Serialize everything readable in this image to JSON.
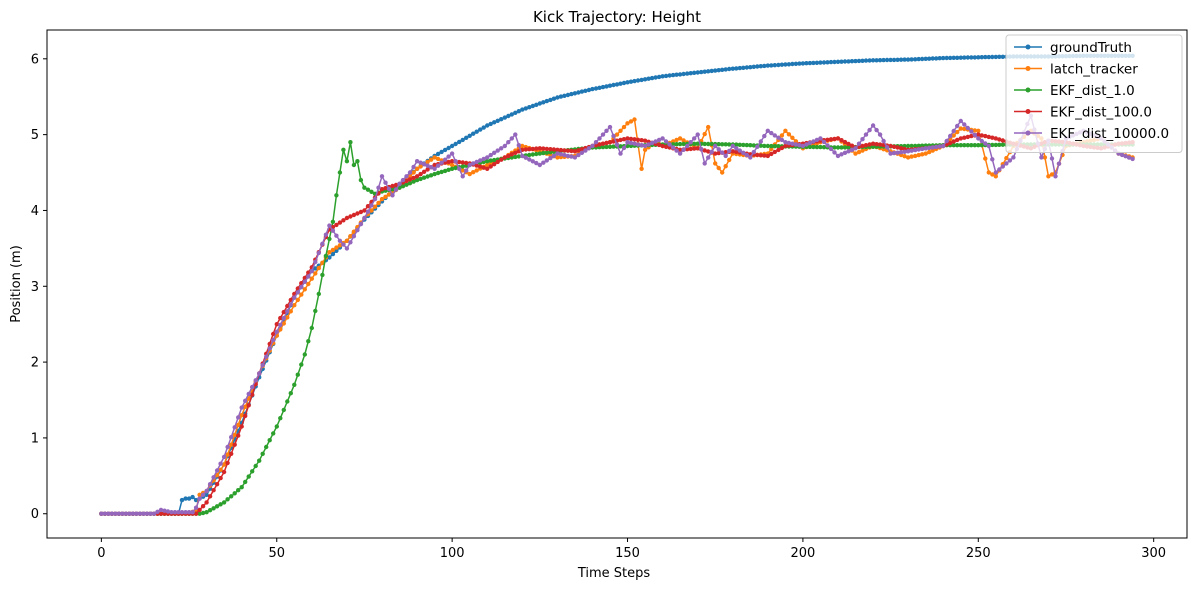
{
  "chart_data": {
    "type": "line",
    "title": "Kick Trajectory: Height",
    "xlabel": "Time Steps",
    "ylabel": "Position (m)",
    "xlim": [
      -15.5,
      309.5
    ],
    "ylim": [
      -0.32,
      6.38
    ],
    "xticks": [
      0,
      50,
      100,
      150,
      200,
      250,
      300
    ],
    "yticks": [
      0,
      1,
      2,
      3,
      4,
      5,
      6
    ],
    "grid": false,
    "legend_position": "upper right",
    "series": [
      {
        "name": "groundTruth",
        "color": "#1f77b4",
        "x": [
          0,
          10,
          20,
          22,
          23,
          24,
          25,
          26,
          27,
          28,
          30,
          35,
          40,
          45,
          50,
          55,
          60,
          65,
          70,
          75,
          80,
          85,
          90,
          95,
          100,
          110,
          120,
          130,
          140,
          150,
          160,
          170,
          180,
          190,
          200,
          210,
          220,
          230,
          240,
          250,
          260,
          270,
          280,
          290,
          294
        ],
        "y": [
          0,
          0,
          0.0,
          0.0,
          0.18,
          0.2,
          0.2,
          0.22,
          0.18,
          0.2,
          0.25,
          0.65,
          1.2,
          1.8,
          2.35,
          2.85,
          3.2,
          3.38,
          3.6,
          3.88,
          4.12,
          4.35,
          4.55,
          4.72,
          4.85,
          5.12,
          5.33,
          5.49,
          5.6,
          5.69,
          5.77,
          5.82,
          5.87,
          5.91,
          5.94,
          5.96,
          5.98,
          5.99,
          6.01,
          6.02,
          6.03,
          6.03,
          6.04,
          6.04,
          6.04
        ]
      },
      {
        "name": "latch_tracker",
        "color": "#ff7f0e",
        "x": [
          0,
          15,
          20,
          25,
          27,
          28,
          30,
          35,
          40,
          45,
          50,
          55,
          60,
          65,
          70,
          75,
          78,
          80,
          85,
          90,
          95,
          100,
          105,
          110,
          115,
          120,
          125,
          130,
          135,
          140,
          145,
          150,
          152,
          154,
          155,
          158,
          160,
          165,
          170,
          173,
          175,
          177,
          180,
          185,
          190,
          195,
          200,
          205,
          210,
          215,
          220,
          225,
          230,
          235,
          240,
          245,
          250,
          253,
          255,
          260,
          265,
          268,
          270,
          272,
          275,
          280,
          285,
          290,
          294
        ],
        "y": [
          0,
          0,
          0,
          0,
          0.05,
          0.25,
          0.3,
          0.65,
          1.3,
          1.85,
          2.35,
          2.75,
          3.1,
          3.45,
          3.6,
          3.9,
          4.05,
          4.15,
          4.3,
          4.55,
          4.7,
          4.6,
          4.48,
          4.6,
          4.7,
          4.85,
          4.78,
          4.7,
          4.72,
          4.85,
          4.9,
          5.15,
          5.2,
          4.55,
          4.8,
          4.9,
          4.85,
          4.95,
          4.82,
          5.1,
          4.62,
          4.5,
          4.75,
          4.72,
          4.75,
          5.05,
          4.82,
          4.9,
          4.95,
          4.75,
          4.85,
          4.78,
          4.7,
          4.75,
          4.85,
          5.08,
          5.05,
          4.5,
          4.45,
          4.85,
          5.05,
          4.95,
          4.45,
          4.5,
          4.85,
          4.9,
          4.95,
          4.75,
          4.7
        ]
      },
      {
        "name": "EKF_dist_1.0",
        "color": "#2ca02c",
        "x": [
          0,
          20,
          27,
          28,
          30,
          35,
          40,
          45,
          50,
          55,
          58,
          60,
          62,
          64,
          66,
          67,
          68,
          69,
          70,
          71,
          72,
          73,
          74,
          75,
          78,
          80,
          85,
          90,
          95,
          100,
          110,
          120,
          130,
          140,
          150,
          160,
          170,
          180,
          190,
          200,
          210,
          220,
          230,
          240,
          250,
          260,
          270,
          280,
          290,
          294
        ],
        "y": [
          0,
          0,
          0,
          0,
          0.02,
          0.15,
          0.35,
          0.7,
          1.15,
          1.7,
          2.1,
          2.45,
          2.9,
          3.4,
          3.85,
          4.2,
          4.5,
          4.8,
          4.65,
          4.9,
          4.6,
          4.65,
          4.4,
          4.3,
          4.22,
          4.25,
          4.3,
          4.4,
          4.48,
          4.55,
          4.65,
          4.72,
          4.78,
          4.83,
          4.85,
          4.87,
          4.88,
          4.87,
          4.85,
          4.84,
          4.83,
          4.84,
          4.85,
          4.86,
          4.86,
          4.87,
          4.87,
          4.87,
          4.87,
          4.87
        ]
      },
      {
        "name": "EKF_dist_100.0",
        "color": "#d62728",
        "x": [
          0,
          20,
          27,
          28,
          30,
          35,
          40,
          45,
          50,
          55,
          60,
          65,
          70,
          75,
          80,
          85,
          90,
          95,
          100,
          105,
          110,
          115,
          120,
          125,
          130,
          135,
          140,
          145,
          150,
          155,
          160,
          165,
          170,
          175,
          180,
          185,
          190,
          195,
          200,
          205,
          210,
          215,
          220,
          225,
          230,
          235,
          240,
          245,
          250,
          255,
          260,
          265,
          270,
          275,
          280,
          285,
          290,
          294
        ],
        "y": [
          0,
          0,
          0,
          0.05,
          0.15,
          0.55,
          1.15,
          1.85,
          2.5,
          2.9,
          3.25,
          3.75,
          3.9,
          4.0,
          4.28,
          4.35,
          4.45,
          4.6,
          4.65,
          4.62,
          4.55,
          4.7,
          4.8,
          4.82,
          4.8,
          4.78,
          4.85,
          4.9,
          4.95,
          4.92,
          4.85,
          4.8,
          4.82,
          4.75,
          4.78,
          4.74,
          4.72,
          4.85,
          4.88,
          4.92,
          4.95,
          4.83,
          4.88,
          4.85,
          4.8,
          4.82,
          4.85,
          4.95,
          5.0,
          4.95,
          4.88,
          4.82,
          4.92,
          4.9,
          4.85,
          4.82,
          4.88,
          4.9
        ]
      },
      {
        "name": "EKF_dist_10000.0",
        "color": "#9467bd",
        "x": [
          0,
          15,
          17,
          20,
          26,
          27,
          28,
          30,
          35,
          40,
          45,
          50,
          55,
          60,
          65,
          68,
          70,
          75,
          78,
          80,
          83,
          85,
          88,
          90,
          95,
          100,
          103,
          105,
          110,
          115,
          118,
          120,
          125,
          130,
          135,
          140,
          145,
          148,
          150,
          155,
          160,
          165,
          170,
          172,
          175,
          178,
          180,
          185,
          190,
          195,
          200,
          205,
          210,
          215,
          220,
          222,
          225,
          230,
          235,
          240,
          245,
          250,
          253,
          255,
          260,
          265,
          268,
          270,
          272,
          275,
          280,
          285,
          290,
          294
        ],
        "y": [
          0,
          0,
          0.05,
          0.02,
          0.02,
          0.08,
          0.2,
          0.3,
          0.75,
          1.4,
          1.85,
          2.4,
          2.85,
          3.2,
          3.8,
          3.6,
          3.5,
          3.9,
          4.15,
          4.45,
          4.2,
          4.35,
          4.5,
          4.65,
          4.55,
          4.75,
          4.45,
          4.6,
          4.7,
          4.85,
          5.0,
          4.72,
          4.6,
          4.75,
          4.7,
          4.85,
          5.1,
          4.75,
          4.9,
          4.85,
          4.95,
          4.75,
          5.0,
          4.62,
          4.85,
          4.72,
          4.85,
          4.7,
          5.05,
          4.9,
          4.85,
          4.95,
          4.72,
          4.82,
          5.12,
          5.0,
          4.75,
          4.78,
          4.82,
          4.85,
          5.18,
          4.95,
          4.85,
          4.5,
          4.7,
          5.25,
          4.7,
          4.92,
          4.45,
          4.95,
          5.05,
          4.95,
          4.75,
          4.68
        ]
      }
    ]
  }
}
